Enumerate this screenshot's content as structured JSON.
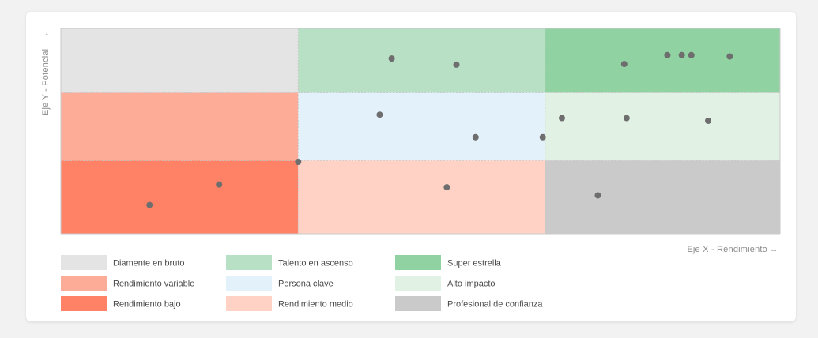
{
  "chart_data": {
    "type": "scatter",
    "title": "",
    "xlabel": "Eje X - Rendimiento",
    "ylabel": "Eje Y - Potencial",
    "xlim": [
      0,
      3
    ],
    "ylim": [
      0,
      3
    ],
    "grid": {
      "x_breaks": [
        0,
        0.99,
        2.02,
        3
      ],
      "y_breaks": [
        0,
        1.07,
        2.06,
        3
      ]
    },
    "cells": [
      {
        "label": "Diamente en bruto",
        "col": 0,
        "row": 2,
        "color": "#e4e4e4"
      },
      {
        "label": "Talento en ascenso",
        "col": 1,
        "row": 2,
        "color": "#b8e0c4"
      },
      {
        "label": "Super estrella",
        "col": 2,
        "row": 2,
        "color": "#90d2a2"
      },
      {
        "label": "Rendimiento variable",
        "col": 0,
        "row": 1,
        "color": "#fdac97"
      },
      {
        "label": "Persona clave",
        "col": 1,
        "row": 1,
        "color": "#e3f1fb"
      },
      {
        "label": "Alto impacto",
        "col": 2,
        "row": 1,
        "color": "#e1f1e4"
      },
      {
        "label": "Rendimiento bajo",
        "col": 0,
        "row": 0,
        "color": "#ff8267"
      },
      {
        "label": "Rendimiento medio",
        "col": 1,
        "row": 0,
        "color": "#ffd2c5"
      },
      {
        "label": "Profesional de confianza",
        "col": 2,
        "row": 0,
        "color": "#cacaca"
      }
    ],
    "points": [
      {
        "x": 1.38,
        "y": 2.56
      },
      {
        "x": 1.65,
        "y": 2.47
      },
      {
        "x": 2.35,
        "y": 2.48
      },
      {
        "x": 2.53,
        "y": 2.61
      },
      {
        "x": 2.59,
        "y": 2.61
      },
      {
        "x": 2.63,
        "y": 2.61
      },
      {
        "x": 2.79,
        "y": 2.59
      },
      {
        "x": 1.33,
        "y": 1.74
      },
      {
        "x": 1.73,
        "y": 1.41
      },
      {
        "x": 2.01,
        "y": 1.41
      },
      {
        "x": 2.09,
        "y": 1.69
      },
      {
        "x": 2.36,
        "y": 1.69
      },
      {
        "x": 2.7,
        "y": 1.65
      },
      {
        "x": 0.99,
        "y": 1.05
      },
      {
        "x": 0.66,
        "y": 0.72
      },
      {
        "x": 0.37,
        "y": 0.42
      },
      {
        "x": 1.61,
        "y": 0.68
      },
      {
        "x": 2.24,
        "y": 0.56
      }
    ],
    "point_color": "#6e6e6e",
    "legend": {
      "position": "bottom-left",
      "columns": [
        [
          "Diamente en bruto",
          "Rendimiento variable",
          "Rendimiento bajo"
        ],
        [
          "Talento en ascenso",
          "Persona clave",
          "Rendimiento medio"
        ],
        [
          "Super estrella",
          "Alto impacto",
          "Profesional de confianza"
        ]
      ]
    }
  }
}
